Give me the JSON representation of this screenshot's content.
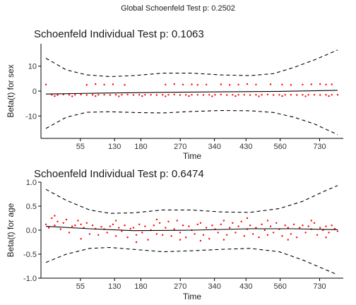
{
  "global_title": "Global Schoenfeld Test p: 0.2502",
  "chart_data": [
    {
      "type": "scatter",
      "title": "Schoenfeld Individual Test p: 0.1063",
      "xlabel": "Time",
      "ylabel": "Beta(t) for sex",
      "x_ticks": [
        "55",
        "130",
        "180",
        "270",
        "340",
        "430",
        "560",
        "730"
      ],
      "y_ticks": [
        -10,
        0,
        10
      ],
      "ylim": [
        -19,
        19
      ],
      "xlim": [
        0,
        100
      ],
      "grid": false,
      "series_colors": {
        "residuals": "#ff0000",
        "fit": "#000000",
        "band": "#000000"
      },
      "residual_levels": [
        2.6,
        -1.5
      ],
      "residuals": [
        [
          2,
          -1.5
        ],
        [
          4,
          -1.6
        ],
        [
          6,
          -1.4
        ],
        [
          8,
          -1.5
        ],
        [
          10,
          -1.5
        ],
        [
          12,
          -1.4
        ],
        [
          14,
          -1.6
        ],
        [
          16,
          -1.5
        ],
        [
          18,
          -1.5
        ],
        [
          20,
          -1.5
        ],
        [
          22,
          -1.6
        ],
        [
          24,
          -1.5
        ],
        [
          26,
          -1.5
        ],
        [
          28,
          -1.4
        ],
        [
          30,
          -1.6
        ],
        [
          32,
          -1.5
        ],
        [
          34,
          -1.5
        ],
        [
          36,
          -1.5
        ],
        [
          38,
          -1.6
        ],
        [
          40,
          -1.5
        ],
        [
          42,
          -1.5
        ],
        [
          44,
          -1.4
        ],
        [
          46,
          -1.6
        ],
        [
          48,
          -1.5
        ],
        [
          50,
          -1.5
        ],
        [
          52,
          -1.5
        ],
        [
          54,
          -1.6
        ],
        [
          56,
          -1.5
        ],
        [
          58,
          -1.5
        ],
        [
          60,
          -1.4
        ],
        [
          62,
          -1.6
        ],
        [
          64,
          -1.5
        ],
        [
          66,
          -1.5
        ],
        [
          68,
          -1.5
        ],
        [
          70,
          -1.6
        ],
        [
          72,
          -1.5
        ],
        [
          74,
          -1.5
        ],
        [
          76,
          -1.4
        ],
        [
          78,
          -1.6
        ],
        [
          80,
          -1.5
        ],
        [
          82,
          -1.5
        ],
        [
          84,
          -1.5
        ],
        [
          86,
          -1.6
        ],
        [
          88,
          -1.5
        ],
        [
          90,
          -1.5
        ],
        [
          92,
          -1.5
        ],
        [
          94,
          -1.6
        ],
        [
          96,
          -1.5
        ],
        [
          98,
          -1.5
        ],
        [
          100,
          -1.5
        ],
        [
          3,
          -2.0
        ],
        [
          9,
          -2.1
        ],
        [
          17,
          -2.0
        ],
        [
          25,
          -2.1
        ],
        [
          33,
          -2.0
        ],
        [
          41,
          -2.1
        ],
        [
          49,
          -2.0
        ],
        [
          57,
          -2.1
        ],
        [
          65,
          -2.0
        ],
        [
          73,
          -2.1
        ],
        [
          81,
          -2.0
        ],
        [
          89,
          -2.1
        ],
        [
          97,
          -2.0
        ],
        [
          0,
          2.6
        ],
        [
          14,
          2.5
        ],
        [
          17,
          2.8
        ],
        [
          20,
          2.6
        ],
        [
          23,
          2.7
        ],
        [
          27,
          2.5
        ],
        [
          41,
          2.6
        ],
        [
          44,
          2.8
        ],
        [
          47,
          2.6
        ],
        [
          50,
          2.7
        ],
        [
          52,
          2.5
        ],
        [
          55,
          2.6
        ],
        [
          60,
          2.7
        ],
        [
          63,
          2.5
        ],
        [
          66,
          2.6
        ],
        [
          69,
          2.8
        ],
        [
          72,
          2.6
        ],
        [
          77,
          2.7
        ],
        [
          81,
          2.6
        ],
        [
          84,
          2.5
        ],
        [
          88,
          2.6
        ],
        [
          91,
          2.7
        ],
        [
          94,
          2.8
        ],
        [
          96,
          2.6
        ],
        [
          98,
          2.7
        ]
      ],
      "fit_line": [
        [
          0,
          -1.2
        ],
        [
          20,
          -0.8
        ],
        [
          40,
          -0.5
        ],
        [
          60,
          -0.3
        ],
        [
          80,
          -0.1
        ],
        [
          100,
          0.3
        ]
      ],
      "band_upper": [
        [
          0,
          13.2
        ],
        [
          7,
          8.5
        ],
        [
          14,
          6.5
        ],
        [
          22,
          5.8
        ],
        [
          30,
          6.2
        ],
        [
          40,
          7.2
        ],
        [
          50,
          7.2
        ],
        [
          60,
          6.5
        ],
        [
          70,
          6.2
        ],
        [
          78,
          7.0
        ],
        [
          85,
          9.5
        ],
        [
          92,
          12.5
        ],
        [
          100,
          16.5
        ]
      ],
      "band_lower": [
        [
          0,
          -15.0
        ],
        [
          7,
          -10.5
        ],
        [
          14,
          -8.5
        ],
        [
          22,
          -8.3
        ],
        [
          30,
          -8.6
        ],
        [
          40,
          -8.8
        ],
        [
          50,
          -8.2
        ],
        [
          60,
          -7.8
        ],
        [
          70,
          -7.9
        ],
        [
          78,
          -8.6
        ],
        [
          85,
          -10.5
        ],
        [
          92,
          -13.2
        ],
        [
          100,
          -17.5
        ]
      ]
    },
    {
      "type": "scatter",
      "title": "Schoenfeld Individual Test p: 0.6474",
      "xlabel": "Time",
      "ylabel": "Beta(t) for age",
      "x_ticks": [
        "55",
        "130",
        "180",
        "270",
        "340",
        "430",
        "560",
        "730"
      ],
      "y_ticks": [
        "-1.0",
        "-0.5",
        "0.0",
        "0.5",
        "1.0"
      ],
      "ylim": [
        -1.0,
        1.0
      ],
      "xlim": [
        0,
        100
      ],
      "grid": false,
      "series_colors": {
        "residuals": "#ff0000",
        "fit": "#000000",
        "band": "#000000"
      },
      "residuals": [
        [
          0,
          0.12
        ],
        [
          1,
          0.05
        ],
        [
          2,
          0.25
        ],
        [
          3,
          0.1
        ],
        [
          4,
          0.18
        ],
        [
          5,
          0.02
        ],
        [
          6,
          0.15
        ],
        [
          7,
          0.22
        ],
        [
          8,
          -0.05
        ],
        [
          9,
          0.08
        ],
        [
          10,
          0.1
        ],
        [
          11,
          0.2
        ],
        [
          12,
          0.12
        ],
        [
          13,
          0.05
        ],
        [
          14,
          0.15
        ],
        [
          15,
          -0.08
        ],
        [
          16,
          0.1
        ],
        [
          17,
          0.03
        ],
        [
          18,
          -0.1
        ],
        [
          19,
          0.07
        ],
        [
          20,
          0.02
        ],
        [
          21,
          -0.05
        ],
        [
          22,
          0.08
        ],
        [
          23,
          0.12
        ],
        [
          24,
          -0.12
        ],
        [
          25,
          0.05
        ],
        [
          26,
          -0.02
        ],
        [
          27,
          0.1
        ],
        [
          28,
          -0.15
        ],
        [
          29,
          0.03
        ],
        [
          30,
          0.05
        ],
        [
          31,
          -0.1
        ],
        [
          32,
          0.12
        ],
        [
          33,
          -0.05
        ],
        [
          34,
          0.08
        ],
        [
          35,
          -0.2
        ],
        [
          36,
          0.0
        ],
        [
          37,
          0.1
        ],
        [
          38,
          -0.08
        ],
        [
          39,
          0.15
        ],
        [
          40,
          -0.1
        ],
        [
          41,
          0.05
        ],
        [
          42,
          0.18
        ],
        [
          43,
          -0.12
        ],
        [
          44,
          0.02
        ],
        [
          45,
          0.2
        ],
        [
          46,
          -0.05
        ],
        [
          47,
          0.1
        ],
        [
          48,
          -0.15
        ],
        [
          49,
          0.08
        ],
        [
          50,
          0.0
        ],
        [
          51,
          -0.08
        ],
        [
          52,
          0.12
        ],
        [
          53,
          0.15
        ],
        [
          54,
          -0.1
        ],
        [
          55,
          0.05
        ],
        [
          56,
          -0.18
        ],
        [
          57,
          0.1
        ],
        [
          58,
          0.02
        ],
        [
          59,
          -0.05
        ],
        [
          60,
          0.12
        ],
        [
          61,
          0.2
        ],
        [
          62,
          -0.1
        ],
        [
          63,
          0.05
        ],
        [
          64,
          0.15
        ],
        [
          65,
          -0.05
        ],
        [
          66,
          0.08
        ],
        [
          67,
          0.18
        ],
        [
          68,
          -0.12
        ],
        [
          69,
          0.02
        ],
        [
          70,
          0.1
        ],
        [
          71,
          -0.08
        ],
        [
          72,
          0.05
        ],
        [
          73,
          -0.15
        ],
        [
          74,
          0.12
        ],
        [
          75,
          0.0
        ],
        [
          76,
          -0.1
        ],
        [
          77,
          0.08
        ],
        [
          78,
          -0.05
        ],
        [
          79,
          0.15
        ],
        [
          80,
          0.02
        ],
        [
          81,
          -0.12
        ],
        [
          82,
          0.1
        ],
        [
          83,
          0.05
        ],
        [
          84,
          -0.08
        ],
        [
          85,
          0.12
        ],
        [
          86,
          -0.15
        ],
        [
          87,
          0.05
        ],
        [
          88,
          0.1
        ],
        [
          89,
          -0.05
        ],
        [
          90,
          0.08
        ],
        [
          91,
          0.02
        ],
        [
          92,
          0.15
        ],
        [
          93,
          -0.1
        ],
        [
          94,
          0.05
        ],
        [
          95,
          0.0
        ],
        [
          96,
          0.08
        ],
        [
          97,
          -0.05
        ],
        [
          98,
          0.1
        ],
        [
          99,
          0.03
        ],
        [
          100,
          -0.02
        ],
        [
          3,
          0.3
        ],
        [
          12,
          -0.18
        ],
        [
          24,
          0.2
        ],
        [
          31,
          -0.25
        ],
        [
          38,
          0.22
        ],
        [
          46,
          -0.2
        ],
        [
          53,
          -0.22
        ],
        [
          61,
          -0.2
        ],
        [
          69,
          0.25
        ],
        [
          76,
          0.2
        ],
        [
          83,
          -0.2
        ],
        [
          91,
          0.2
        ],
        [
          96,
          -0.15
        ]
      ],
      "fit_line": [
        [
          0,
          0.08
        ],
        [
          15,
          0.03
        ],
        [
          30,
          -0.01
        ],
        [
          50,
          0.0
        ],
        [
          70,
          0.03
        ],
        [
          85,
          0.03
        ],
        [
          100,
          0.01
        ]
      ],
      "band_upper": [
        [
          0,
          0.85
        ],
        [
          7,
          0.62
        ],
        [
          15,
          0.42
        ],
        [
          22,
          0.35
        ],
        [
          30,
          0.36
        ],
        [
          40,
          0.42
        ],
        [
          50,
          0.42
        ],
        [
          60,
          0.38
        ],
        [
          70,
          0.37
        ],
        [
          80,
          0.45
        ],
        [
          88,
          0.6
        ],
        [
          95,
          0.8
        ],
        [
          100,
          0.93
        ]
      ],
      "band_lower": [
        [
          0,
          -0.67
        ],
        [
          7,
          -0.5
        ],
        [
          15,
          -0.38
        ],
        [
          22,
          -0.36
        ],
        [
          30,
          -0.4
        ],
        [
          40,
          -0.45
        ],
        [
          50,
          -0.43
        ],
        [
          60,
          -0.4
        ],
        [
          70,
          -0.38
        ],
        [
          80,
          -0.45
        ],
        [
          88,
          -0.62
        ],
        [
          95,
          -0.8
        ],
        [
          100,
          -0.93
        ]
      ]
    }
  ]
}
